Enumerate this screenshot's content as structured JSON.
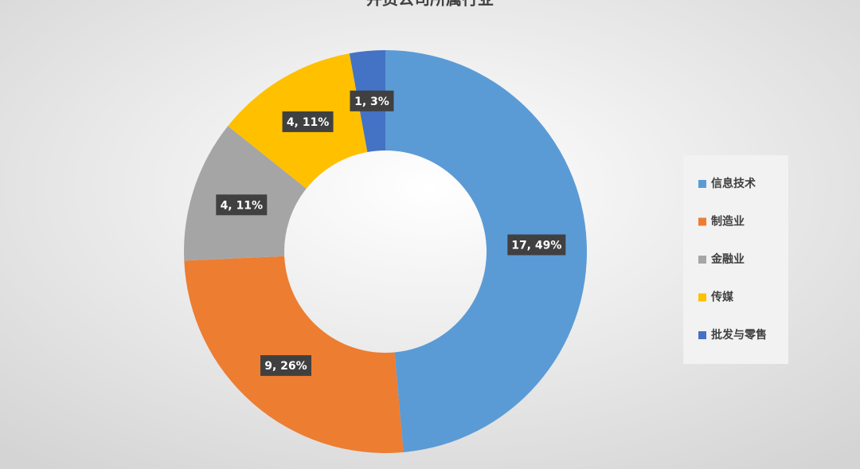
{
  "chart_data": {
    "type": "donut",
    "title": "并资公司所属行业",
    "categories": [
      "信息技术",
      "制造业",
      "金融业",
      "传媒",
      "批发与零售"
    ],
    "values": [
      17,
      9,
      4,
      4,
      1
    ],
    "value_labels": [
      "17, 49%",
      "9, 26%",
      "4, 11%",
      "4, 11%",
      "1, 3%"
    ],
    "colors": [
      "#5b9bd5",
      "#ed7d31",
      "#a5a5a5",
      "#ffc000",
      "#4472c4"
    ],
    "legend": "right"
  }
}
